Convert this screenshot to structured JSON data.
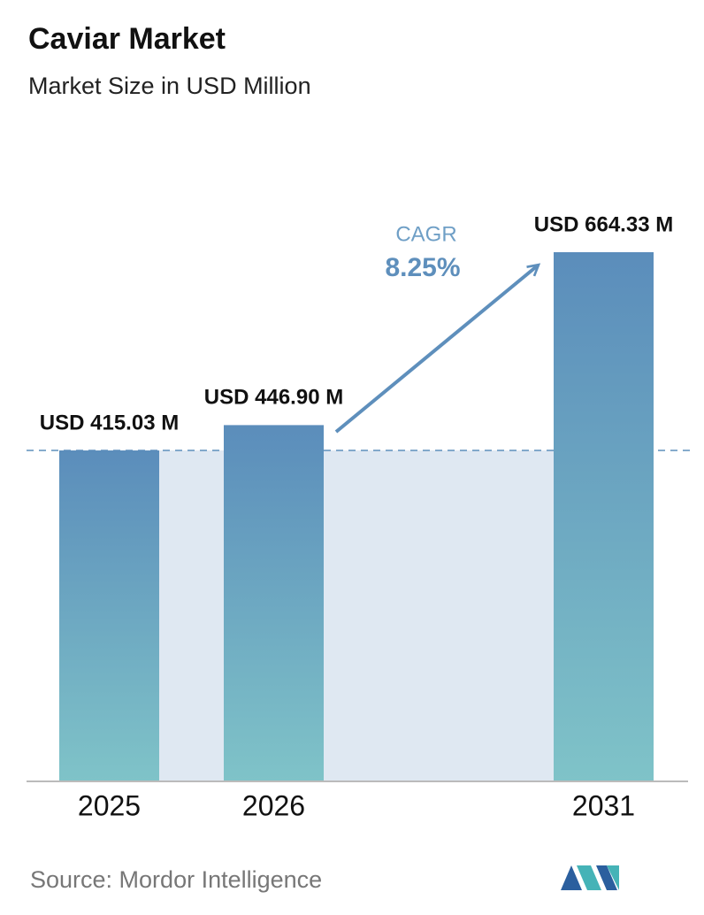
{
  "chart_data": {
    "type": "bar",
    "title": "Caviar Market",
    "subtitle": "Market Size in USD Million",
    "categories": [
      "2025",
      "2026",
      "2031"
    ],
    "values": [
      415.03,
      446.9,
      664.33
    ],
    "value_labels": [
      "USD 415.03 M",
      "USD 446.90 M",
      "USD 664.33 M"
    ],
    "color": [
      "#5b8dbb",
      "#7fc3c8"
    ],
    "cagr_label": "CAGR",
    "cagr": {
      "value": 8.25,
      "label": "8.25%"
    },
    "source": "Source:  Mordor Intelligence"
  }
}
